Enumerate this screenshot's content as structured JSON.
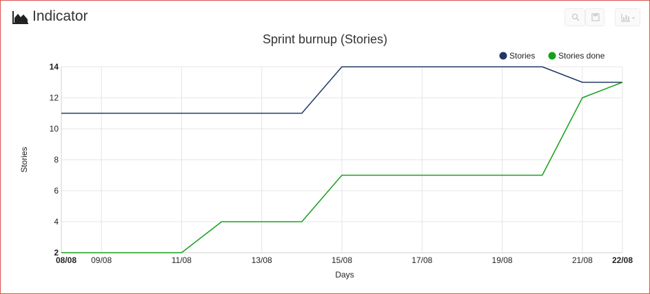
{
  "panel": {
    "title": "Indicator",
    "title_icon": "area-chart-icon",
    "toolbar": [
      {
        "name": "zoom-button",
        "icon": "search-icon"
      },
      {
        "name": "save-button",
        "icon": "save-icon"
      },
      {
        "name": "chart-type-dropdown",
        "icon": "bar-chart-icon"
      }
    ]
  },
  "chart_data": {
    "type": "line",
    "title": "Sprint burnup (Stories)",
    "xlabel": "Days",
    "ylabel": "Stories",
    "x": [
      "08/08",
      "09/08",
      "10/08",
      "11/08",
      "12/08",
      "13/08",
      "14/08",
      "15/08",
      "16/08",
      "17/08",
      "18/08",
      "19/08",
      "20/08",
      "21/08",
      "22/08"
    ],
    "x_tick_labels": [
      "08/08",
      "09/08",
      "11/08",
      "13/08",
      "15/08",
      "17/08",
      "19/08",
      "21/08",
      "22/08"
    ],
    "bold_x_ticks": [
      "08/08",
      "22/08"
    ],
    "ylim": [
      2,
      14
    ],
    "y_ticks": [
      2,
      4,
      6,
      8,
      10,
      12,
      14
    ],
    "bold_y_ticks": [
      2,
      14
    ],
    "grid": true,
    "legend_position": "top-right",
    "series": [
      {
        "name": "Stories",
        "color": "#1f3864",
        "values": [
          11,
          11,
          11,
          11,
          11,
          11,
          11,
          14,
          14,
          14,
          14,
          14,
          14,
          13,
          13
        ]
      },
      {
        "name": "Stories done",
        "color": "#16a01a",
        "values": [
          2,
          2,
          2,
          2,
          4,
          4,
          4,
          7,
          7,
          7,
          7,
          7,
          7,
          12,
          13
        ]
      }
    ]
  }
}
